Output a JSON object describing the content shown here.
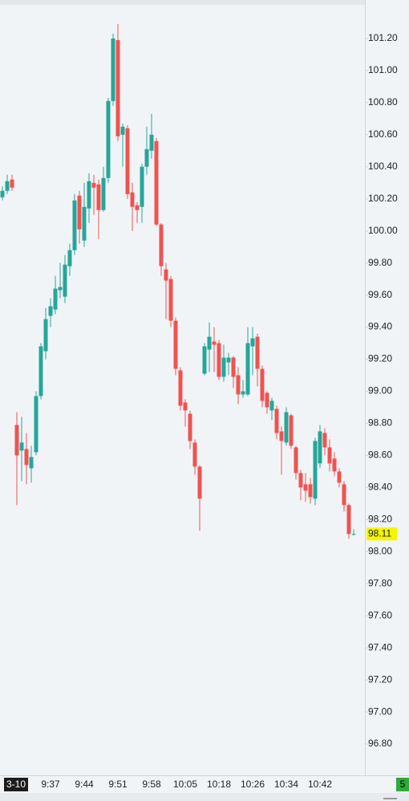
{
  "chart_data": {
    "type": "candlestick",
    "categories": [
      null,
      null,
      null,
      "3-10",
      null,
      null,
      null,
      null,
      null,
      null,
      "9:37",
      null,
      null,
      null,
      null,
      null,
      null,
      "9:44",
      null,
      null,
      null,
      null,
      null,
      null,
      "9:51",
      null,
      null,
      null,
      null,
      null,
      null,
      "9:58",
      null,
      null,
      null,
      null,
      null,
      null,
      "10:05",
      null,
      null,
      null,
      null,
      null,
      null,
      "10:18",
      null,
      null,
      null,
      null,
      null,
      null,
      "10:26",
      null,
      null,
      null,
      null,
      null,
      null,
      "10:34",
      null,
      null,
      null,
      null,
      null,
      null,
      "10:42",
      null,
      null,
      null,
      null,
      null,
      null,
      null
    ],
    "open": [
      100.21,
      100.25,
      100.32,
      98.79,
      98.63,
      98.64,
      98.52,
      98.62,
      98.97,
      99.25,
      99.47,
      99.51,
      99.63,
      99.59,
      99.78,
      99.88,
      100.22,
      99.94,
      100.14,
      100.3,
      100.29,
      100.13,
      100.33,
      100.81,
      101.19,
      100.6,
      100.64,
      100.24,
      100.16,
      100.15,
      100.4,
      100.5,
      100.56,
      100.04,
      99.76,
      99.7,
      99.44,
      99.13,
      98.93,
      98.86,
      98.68,
      98.53,
      99.11,
      99.26,
      99.31,
      99.3,
      99.09,
      99.18,
      99.21,
      99.1,
      98.98,
      98.98,
      99.28,
      99.34,
      99.14,
      98.99,
      98.88,
      98.89,
      98.75,
      98.68,
      98.85,
      98.65,
      98.49,
      98.42,
      98.42,
      98.33,
      98.55,
      98.74,
      98.65,
      98.58,
      98.5,
      98.42,
      98.29,
      98.11
    ],
    "high": [
      100.28,
      100.35,
      100.35,
      98.87,
      98.84,
      98.74,
      98.66,
      99.0,
      99.3,
      99.52,
      99.58,
      99.72,
      99.8,
      99.85,
      99.92,
      100.23,
      100.25,
      100.3,
      100.36,
      100.35,
      100.32,
      100.4,
      100.83,
      101.23,
      101.29,
      100.67,
      100.66,
      100.3,
      100.18,
      100.42,
      100.65,
      100.73,
      100.58,
      100.05,
      99.8,
      99.72,
      99.46,
      99.15,
      98.95,
      98.88,
      98.7,
      98.54,
      99.3,
      99.43,
      99.4,
      99.32,
      99.29,
      99.24,
      99.22,
      99.15,
      99.07,
      99.4,
      99.4,
      99.36,
      99.16,
      99.0,
      98.96,
      98.91,
      98.78,
      98.9,
      98.86,
      98.66,
      98.51,
      98.49,
      98.46,
      98.71,
      98.79,
      98.77,
      98.7,
      98.62,
      98.52,
      98.44,
      98.3,
      98.14
    ],
    "low": [
      100.19,
      100.23,
      100.25,
      98.29,
      98.44,
      98.42,
      98.43,
      98.6,
      98.95,
      99.2,
      99.4,
      99.48,
      99.58,
      99.55,
      99.72,
      99.85,
      99.92,
      99.9,
      100.05,
      100.1,
      99.95,
      100.12,
      100.3,
      100.78,
      100.56,
      100.4,
      100.2,
      100.0,
      100.05,
      100.05,
      100.35,
      100.45,
      100.03,
      99.72,
      99.45,
      99.4,
      99.1,
      98.88,
      98.78,
      98.64,
      98.48,
      98.13,
      99.1,
      99.12,
      99.12,
      99.07,
      99.06,
      99.1,
      99.02,
      98.92,
      98.96,
      98.97,
      99.1,
      99.03,
      98.9,
      98.86,
      98.82,
      98.7,
      98.48,
      98.66,
      98.64,
      98.45,
      98.32,
      98.31,
      98.3,
      98.29,
      98.52,
      98.6,
      98.5,
      98.47,
      98.4,
      98.25,
      98.08,
      98.1
    ],
    "close": [
      100.25,
      100.31,
      100.27,
      98.6,
      98.68,
      98.54,
      98.59,
      98.97,
      99.28,
      99.45,
      99.53,
      99.64,
      99.65,
      99.79,
      99.88,
      100.19,
      100.01,
      100.15,
      100.31,
      100.27,
      100.13,
      100.33,
      100.81,
      101.2,
      100.59,
      100.65,
      100.23,
      100.15,
      100.13,
      100.4,
      100.51,
      100.6,
      100.04,
      99.78,
      99.69,
      99.44,
      99.14,
      98.91,
      98.88,
      98.69,
      98.53,
      98.33,
      99.28,
      99.34,
      99.29,
      99.09,
      99.21,
      99.21,
      99.09,
      98.98,
      99.0,
      99.3,
      99.33,
      99.14,
      98.94,
      98.9,
      98.94,
      98.74,
      98.69,
      98.87,
      98.66,
      98.49,
      98.4,
      98.38,
      98.34,
      98.69,
      98.75,
      98.65,
      98.55,
      98.5,
      98.43,
      98.29,
      98.11,
      98.11
    ],
    "up_color": "#26a69a",
    "down_color": "#ef5350",
    "ylim": [
      96.61,
      101.44
    ],
    "yticks": [
      {
        "value": 96.8,
        "label": "96.80"
      },
      {
        "value": 97.0,
        "label": "97.00"
      },
      {
        "value": 97.2,
        "label": "97.20"
      },
      {
        "value": 97.4,
        "label": "97.40"
      },
      {
        "value": 97.6,
        "label": "97.60"
      },
      {
        "value": 97.8,
        "label": "97.80"
      },
      {
        "value": 98.0,
        "label": "98.00"
      },
      {
        "value": 98.2,
        "label": "98.20"
      },
      {
        "value": 98.4,
        "label": "98.40"
      },
      {
        "value": 98.6,
        "label": "98.60"
      },
      {
        "value": 98.8,
        "label": "98.80"
      },
      {
        "value": 99.0,
        "label": "99.00"
      },
      {
        "value": 99.2,
        "label": "99.20"
      },
      {
        "value": 99.4,
        "label": "99.40"
      },
      {
        "value": 99.6,
        "label": "99.60"
      },
      {
        "value": 99.8,
        "label": "99.80"
      },
      {
        "value": 100.0,
        "label": "100.00"
      },
      {
        "value": 100.2,
        "label": "100.20"
      },
      {
        "value": 100.4,
        "label": "100.40"
      },
      {
        "value": 100.6,
        "label": "100.60"
      },
      {
        "value": 100.8,
        "label": "100.80"
      },
      {
        "value": 101.0,
        "label": "101.00"
      },
      {
        "value": 101.2,
        "label": "101.20"
      }
    ],
    "last_price": 98.11,
    "last_price_color": "#f5f500",
    "corner_badge": "5"
  }
}
